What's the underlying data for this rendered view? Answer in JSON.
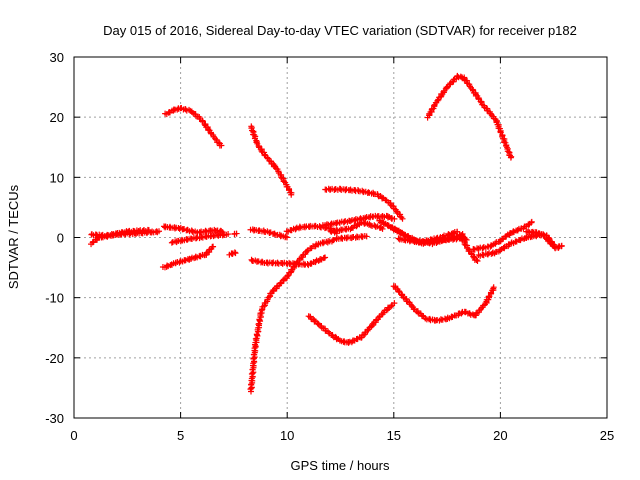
{
  "chart_data": {
    "type": "scatter",
    "title": "Day 015 of 2016, Sidereal Day-to-day VTEC variation (SDTVAR) for receiver p182",
    "xlabel": "GPS time / hours",
    "ylabel": "SDTVAR / TECUs",
    "xlim": [
      0,
      25
    ],
    "ylim": [
      -30,
      30
    ],
    "xticks": [
      "0",
      "5",
      "10",
      "15",
      "20",
      "25"
    ],
    "yticks": [
      "-30",
      "-20",
      "-10",
      "0",
      "10",
      "20",
      "30"
    ],
    "grid": true,
    "marker": "plus",
    "color": "#ff0000",
    "series": [
      {
        "points": [
          [
            0.8,
            -1
          ],
          [
            1.2,
            0
          ],
          [
            2,
            0.5
          ],
          [
            3,
            0.7
          ],
          [
            4,
            1
          ]
        ]
      },
      {
        "points": [
          [
            0.8,
            0.5
          ],
          [
            1.5,
            0.3
          ],
          [
            2.5,
            1
          ],
          [
            3.5,
            1.2
          ]
        ]
      },
      {
        "points": [
          [
            4.2,
            -5
          ],
          [
            4.8,
            -4.2
          ],
          [
            5.5,
            -3.5
          ],
          [
            6.2,
            -2.8
          ],
          [
            6.5,
            -1.5
          ]
        ]
      },
      {
        "points": [
          [
            4.2,
            1.8
          ],
          [
            5,
            1.5
          ],
          [
            5.8,
            0.8
          ],
          [
            6.5,
            1.2
          ],
          [
            7,
            1
          ]
        ]
      },
      {
        "points": [
          [
            4.6,
            -0.8
          ],
          [
            5.5,
            -0.2
          ],
          [
            6.5,
            0.3
          ],
          [
            7.2,
            0.5
          ]
        ]
      },
      {
        "points": [
          [
            7.3,
            -2.8
          ],
          [
            7.6,
            -2.5
          ]
        ]
      },
      {
        "points": [
          [
            7.5,
            0.5
          ],
          [
            7.6,
            0.7
          ]
        ]
      },
      {
        "points": [
          [
            4.3,
            20.5
          ],
          [
            4.7,
            21.2
          ],
          [
            5,
            21.5
          ],
          [
            5.5,
            21
          ],
          [
            6,
            19.5
          ],
          [
            6.5,
            17
          ],
          [
            6.9,
            15.2
          ]
        ]
      },
      {
        "points": [
          [
            8.3,
            18.5
          ],
          [
            8.6,
            15.5
          ],
          [
            9,
            13.5
          ],
          [
            9.5,
            11.5
          ],
          [
            10,
            8.5
          ],
          [
            10.2,
            7.2
          ]
        ]
      },
      {
        "points": [
          [
            8.3,
            -25.5
          ],
          [
            8.5,
            -18
          ],
          [
            8.8,
            -12
          ],
          [
            9.3,
            -9
          ],
          [
            10,
            -6.5
          ],
          [
            10.5,
            -4
          ],
          [
            11,
            -2
          ],
          [
            11.5,
            -1
          ],
          [
            12.2,
            -0.5
          ]
        ]
      },
      {
        "points": [
          [
            8.3,
            1.3
          ],
          [
            9,
            1
          ],
          [
            9.5,
            0.5
          ],
          [
            10,
            0
          ]
        ]
      },
      {
        "points": [
          [
            8.3,
            -3.8
          ],
          [
            9,
            -4.2
          ],
          [
            10,
            -4.3
          ],
          [
            11,
            -4.5
          ],
          [
            11.8,
            -3.3
          ]
        ]
      },
      {
        "points": [
          [
            10,
            1
          ],
          [
            10.6,
            1.7
          ],
          [
            11.3,
            1.9
          ],
          [
            12,
            1.5
          ],
          [
            12.3,
            0.8
          ]
        ]
      },
      {
        "points": [
          [
            11,
            -13
          ],
          [
            11.5,
            -14.5
          ],
          [
            12,
            -16
          ],
          [
            12.5,
            -17.2
          ],
          [
            12.9,
            -17.5
          ],
          [
            13.5,
            -16.5
          ],
          [
            14,
            -14.5
          ],
          [
            14.5,
            -12.5
          ],
          [
            15,
            -11
          ]
        ]
      },
      {
        "points": [
          [
            12.3,
            -0.2
          ],
          [
            13,
            0
          ],
          [
            13.7,
            0.2
          ]
        ]
      },
      {
        "points": [
          [
            11.7,
            2
          ],
          [
            12.5,
            2.5
          ],
          [
            13,
            2.8
          ],
          [
            14,
            3.5
          ],
          [
            14.7,
            3.5
          ],
          [
            15,
            3
          ]
        ]
      },
      {
        "points": [
          [
            12,
            1
          ],
          [
            13,
            1.5
          ],
          [
            13.5,
            2.5
          ],
          [
            14,
            2
          ],
          [
            14.5,
            1.5
          ]
        ]
      },
      {
        "points": [
          [
            11.8,
            8
          ],
          [
            12.5,
            8
          ],
          [
            13.3,
            7.8
          ],
          [
            14.2,
            7.2
          ],
          [
            14.8,
            5.8
          ],
          [
            15.4,
            3.2
          ]
        ]
      },
      {
        "points": [
          [
            15,
            -8
          ],
          [
            15.5,
            -10
          ],
          [
            16,
            -12
          ],
          [
            16.5,
            -13.5
          ],
          [
            17,
            -13.8
          ],
          [
            17.5,
            -13.5
          ],
          [
            18,
            -12.8
          ],
          [
            18.3,
            -12.3
          ],
          [
            18.8,
            -13
          ],
          [
            19.3,
            -11
          ],
          [
            19.7,
            -8.3
          ]
        ]
      },
      {
        "points": [
          [
            14.3,
            2.8
          ],
          [
            15,
            1.5
          ],
          [
            15.7,
            0
          ],
          [
            16.3,
            -1
          ],
          [
            17,
            -0.5
          ],
          [
            18,
            -0.2
          ],
          [
            18.3,
            0
          ]
        ]
      },
      {
        "points": [
          [
            14.8,
            1.8
          ],
          [
            15.5,
            0.5
          ],
          [
            16,
            -0.5
          ],
          [
            16.8,
            -1
          ],
          [
            17.5,
            -0.3
          ],
          [
            18.2,
            0.5
          ],
          [
            18.4,
            -0.5
          ]
        ]
      },
      {
        "points": [
          [
            15.2,
            -0.2
          ],
          [
            16.2,
            -0.8
          ],
          [
            17.2,
            0
          ],
          [
            18,
            1
          ]
        ]
      },
      {
        "points": [
          [
            18.1,
            0.5
          ],
          [
            18.5,
            -2
          ],
          [
            18.9,
            -4
          ]
        ]
      },
      {
        "points": [
          [
            16.6,
            20
          ],
          [
            17,
            22.5
          ],
          [
            17.5,
            25
          ],
          [
            18,
            26.8
          ],
          [
            18.3,
            26.5
          ],
          [
            18.7,
            24.5
          ],
          [
            19.2,
            22
          ],
          [
            19.8,
            19.5
          ],
          [
            20.3,
            15
          ],
          [
            20.5,
            13.2
          ]
        ]
      },
      {
        "points": [
          [
            18.7,
            -2
          ],
          [
            19.5,
            -1.5
          ],
          [
            20,
            -0.5
          ],
          [
            20.5,
            0.8
          ],
          [
            21,
            1.5
          ],
          [
            21.5,
            2.5
          ]
        ]
      },
      {
        "points": [
          [
            19,
            -3
          ],
          [
            19.8,
            -2.5
          ],
          [
            20.5,
            -1
          ],
          [
            21.2,
            0
          ],
          [
            22,
            0.5
          ],
          [
            22.5,
            -1.5
          ]
        ]
      },
      {
        "points": [
          [
            21.2,
            1
          ],
          [
            21.7,
            0.8
          ],
          [
            22.2,
            0.2
          ],
          [
            22.6,
            -1.8
          ],
          [
            22.9,
            -1.3
          ]
        ]
      }
    ]
  }
}
